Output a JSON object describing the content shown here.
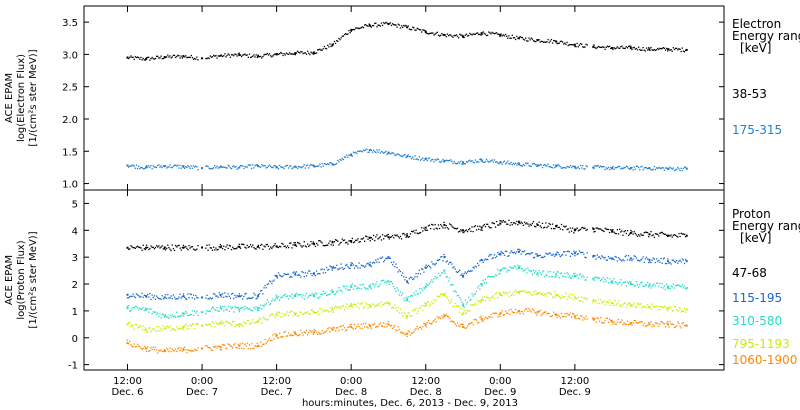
{
  "chart_data": [
    {
      "type": "scatter",
      "panel": "electron",
      "ylabel_lines": [
        "ACE EPAM",
        "log(Electron Flux)",
        "[1/(cm²s ster MeV)]"
      ],
      "ylim": [
        0.9,
        3.75
      ],
      "yticks": [
        "1.0",
        "1.5",
        "2.0",
        "2.5",
        "3.0",
        "3.5"
      ],
      "legend": {
        "title_lines": [
          "Electron",
          "Energy range",
          "[keV]"
        ],
        "placement": "right"
      },
      "series": [
        {
          "name": "38-53",
          "color": "#000000",
          "x": [
            0,
            3,
            6,
            9,
            12,
            15,
            18,
            21,
            24,
            27,
            30,
            33,
            36,
            39,
            42,
            45,
            48,
            51,
            54,
            57,
            60,
            63,
            66,
            69,
            72,
            75,
            78,
            81,
            84,
            87,
            90
          ],
          "y": [
            2.95,
            2.93,
            2.96,
            2.97,
            2.94,
            2.98,
            2.99,
            2.97,
            3.0,
            3.02,
            3.03,
            3.15,
            3.38,
            3.45,
            3.47,
            3.42,
            3.35,
            3.3,
            3.28,
            3.33,
            3.3,
            3.25,
            3.22,
            3.2,
            3.15,
            3.12,
            3.1,
            3.1,
            3.08,
            3.08,
            3.07
          ]
        },
        {
          "name": "175-315",
          "color": "#1f7fd2",
          "x": [
            0,
            3,
            6,
            9,
            12,
            15,
            18,
            21,
            24,
            27,
            30,
            33,
            36,
            39,
            42,
            45,
            48,
            51,
            54,
            57,
            60,
            63,
            66,
            69,
            72,
            75,
            78,
            81,
            84,
            87,
            90
          ],
          "y": [
            1.28,
            1.25,
            1.27,
            1.26,
            1.24,
            1.26,
            1.25,
            1.27,
            1.25,
            1.26,
            1.27,
            1.3,
            1.45,
            1.52,
            1.48,
            1.42,
            1.38,
            1.35,
            1.33,
            1.36,
            1.33,
            1.3,
            1.28,
            1.27,
            1.26,
            1.25,
            1.24,
            1.24,
            1.24,
            1.23,
            1.23
          ]
        }
      ]
    },
    {
      "type": "scatter",
      "panel": "proton",
      "ylabel_lines": [
        "ACE EPAM",
        "log(Proton Flux)",
        "[1/(cm²s ster MeV)]"
      ],
      "ylim": [
        -1.2,
        5.5
      ],
      "yticks": [
        "-1",
        "0",
        "1",
        "2",
        "3",
        "4",
        "5"
      ],
      "legend": {
        "title_lines": [
          "Proton",
          "Energy range",
          "[keV]"
        ],
        "placement": "right"
      },
      "series": [
        {
          "name": "47-68",
          "color": "#000000",
          "x": [
            0,
            3,
            6,
            9,
            12,
            15,
            18,
            21,
            24,
            27,
            30,
            33,
            36,
            39,
            42,
            45,
            48,
            51,
            54,
            57,
            60,
            63,
            66,
            69,
            72,
            75,
            78,
            81,
            84,
            87,
            90
          ],
          "y": [
            3.35,
            3.35,
            3.36,
            3.35,
            3.36,
            3.37,
            3.38,
            3.39,
            3.4,
            3.45,
            3.5,
            3.55,
            3.6,
            3.72,
            3.75,
            3.8,
            4.1,
            4.2,
            4.0,
            4.1,
            4.25,
            4.3,
            4.2,
            4.15,
            4.0,
            4.05,
            3.95,
            3.9,
            3.85,
            3.8,
            3.8
          ]
        },
        {
          "name": "115-195",
          "color": "#1a66cc",
          "x": [
            0,
            3,
            6,
            9,
            12,
            15,
            18,
            21,
            24,
            27,
            30,
            33,
            36,
            39,
            42,
            45,
            48,
            51,
            54,
            57,
            60,
            63,
            66,
            69,
            72,
            75,
            78,
            81,
            84,
            87,
            90
          ],
          "y": [
            1.6,
            1.55,
            1.5,
            1.55,
            1.5,
            1.6,
            1.55,
            1.55,
            2.3,
            2.35,
            2.4,
            2.6,
            2.7,
            2.7,
            3.0,
            2.1,
            2.6,
            3.0,
            2.3,
            2.9,
            3.1,
            3.2,
            3.05,
            3.1,
            3.15,
            3.05,
            2.95,
            2.95,
            2.9,
            2.85,
            2.85
          ]
        },
        {
          "name": "310-580",
          "color": "#22dcc8",
          "x": [
            0,
            3,
            6,
            9,
            12,
            15,
            18,
            21,
            24,
            27,
            30,
            33,
            36,
            39,
            42,
            45,
            48,
            51,
            54,
            57,
            60,
            63,
            66,
            69,
            72,
            75,
            78,
            81,
            84,
            87,
            90
          ],
          "y": [
            1.1,
            1.05,
            0.8,
            0.9,
            0.95,
            1.1,
            1.05,
            1.1,
            1.5,
            1.55,
            1.55,
            1.7,
            1.9,
            1.9,
            2.1,
            1.4,
            1.9,
            2.5,
            1.2,
            2.0,
            2.5,
            2.6,
            2.4,
            2.35,
            2.3,
            2.2,
            2.1,
            2.0,
            1.95,
            1.9,
            1.85
          ]
        },
        {
          "name": "795-1193",
          "color": "#c8ee00",
          "x": [
            0,
            3,
            6,
            9,
            12,
            15,
            18,
            21,
            24,
            27,
            30,
            33,
            36,
            39,
            42,
            45,
            48,
            51,
            54,
            57,
            60,
            63,
            66,
            69,
            72,
            75,
            78,
            81,
            84,
            87,
            90
          ],
          "y": [
            0.5,
            0.3,
            0.35,
            0.4,
            0.45,
            0.55,
            0.5,
            0.6,
            0.85,
            0.9,
            0.95,
            1.05,
            1.2,
            1.2,
            1.3,
            0.8,
            1.2,
            1.6,
            0.9,
            1.4,
            1.6,
            1.7,
            1.65,
            1.6,
            1.5,
            1.4,
            1.3,
            1.2,
            1.15,
            1.1,
            1.05
          ]
        },
        {
          "name": "1060-1900",
          "color": "#ff8800",
          "x": [
            0,
            3,
            6,
            9,
            12,
            15,
            18,
            21,
            24,
            27,
            30,
            33,
            36,
            39,
            42,
            45,
            48,
            51,
            54,
            57,
            60,
            63,
            66,
            69,
            72,
            75,
            78,
            81,
            84,
            87,
            90
          ],
          "y": [
            -0.2,
            -0.4,
            -0.5,
            -0.45,
            -0.4,
            -0.35,
            -0.3,
            -0.3,
            0.1,
            0.15,
            0.2,
            0.3,
            0.4,
            0.45,
            0.5,
            0.15,
            0.5,
            0.8,
            0.4,
            0.7,
            0.9,
            1.0,
            0.95,
            0.85,
            0.8,
            0.7,
            0.6,
            0.55,
            0.5,
            0.5,
            0.45
          ]
        }
      ]
    }
  ],
  "x_axis": {
    "range_hours": [
      -7,
      96
    ],
    "ticks": [
      {
        "t": 0,
        "time": "12:00",
        "day": "Dec. 6"
      },
      {
        "t": 12,
        "time": "0:00",
        "day": "Dec. 7"
      },
      {
        "t": 24,
        "time": "12:00",
        "day": "Dec. 7"
      },
      {
        "t": 36,
        "time": "0:00",
        "day": "Dec. 8"
      },
      {
        "t": 48,
        "time": "12:00",
        "day": "Dec. 8"
      },
      {
        "t": 60,
        "time": "0:00",
        "day": "Dec. 9"
      },
      {
        "t": 72,
        "time": "12:00",
        "day": "Dec. 9"
      }
    ],
    "label": "hours:minutes, Dec.  6, 2013 - Dec.  9, 2013"
  }
}
